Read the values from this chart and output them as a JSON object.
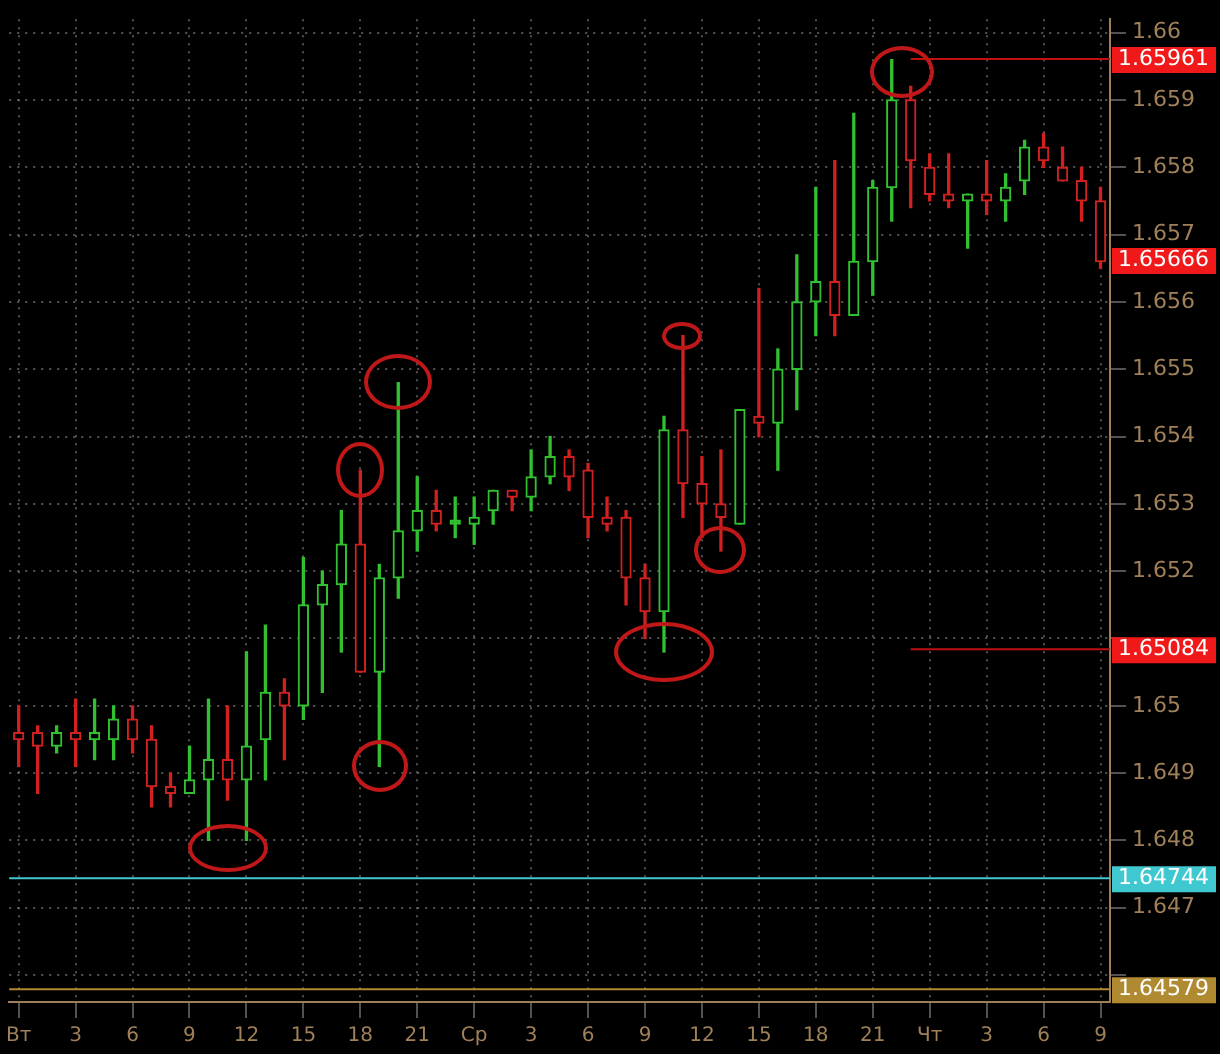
{
  "chart_data": {
    "type": "candlestick",
    "categories": [
      "Вт",
      null,
      null,
      "3",
      null,
      null,
      "6",
      null,
      null,
      "9",
      null,
      null,
      "12",
      null,
      null,
      "15",
      null,
      null,
      "18",
      null,
      null,
      "21",
      null,
      null,
      "Ср",
      null,
      null,
      "3",
      null,
      null,
      "6",
      null,
      null,
      "9",
      null,
      null,
      "12",
      null,
      null,
      "15",
      null,
      null,
      "18",
      null,
      null,
      "21",
      null,
      null,
      "Чт",
      null,
      null,
      "3",
      null,
      null,
      "6",
      null,
      null,
      "9"
    ],
    "ohlc": [
      [
        1.6496,
        1.65,
        1.6491,
        1.6495
      ],
      [
        1.6496,
        1.6497,
        1.6487,
        1.6494
      ],
      [
        1.6494,
        1.6497,
        1.6493,
        1.6496
      ],
      [
        1.6496,
        1.6501,
        1.6491,
        1.6495
      ],
      [
        1.6495,
        1.6501,
        1.6492,
        1.6496
      ],
      [
        1.6495,
        1.65,
        1.6492,
        1.6498
      ],
      [
        1.6498,
        1.65,
        1.6493,
        1.6495
      ],
      [
        1.6495,
        1.6497,
        1.6485,
        1.6488
      ],
      [
        1.6488,
        1.649,
        1.6485,
        1.6487
      ],
      [
        1.6487,
        1.6494,
        1.6487,
        1.6489
      ],
      [
        1.6489,
        1.6501,
        1.648,
        1.6492
      ],
      [
        1.6492,
        1.65,
        1.6486,
        1.6489
      ],
      [
        1.6489,
        1.6508,
        1.648,
        1.6494
      ],
      [
        1.6495,
        1.6512,
        1.6489,
        1.6502
      ],
      [
        1.6502,
        1.6504,
        1.6492,
        1.65
      ],
      [
        1.65,
        1.6522,
        1.6498,
        1.6515
      ],
      [
        1.6515,
        1.652,
        1.6502,
        1.6518
      ],
      [
        1.6518,
        1.6529,
        1.6508,
        1.6524
      ],
      [
        1.6524,
        1.6535,
        1.6505,
        1.6505
      ],
      [
        1.6505,
        1.6521,
        1.6491,
        1.6519
      ],
      [
        1.6519,
        1.6548,
        1.6516,
        1.6526
      ],
      [
        1.6526,
        1.6534,
        1.6523,
        1.6529
      ],
      [
        1.6529,
        1.6532,
        1.6526,
        1.6527
      ],
      [
        1.6527,
        1.6531,
        1.6525,
        1.6527
      ],
      [
        1.6527,
        1.6531,
        1.6524,
        1.6528
      ],
      [
        1.6529,
        1.6532,
        1.6527,
        1.6532
      ],
      [
        1.6532,
        1.6532,
        1.6529,
        1.6531
      ],
      [
        1.6531,
        1.6538,
        1.6529,
        1.6534
      ],
      [
        1.6534,
        1.654,
        1.6533,
        1.6537
      ],
      [
        1.6537,
        1.6538,
        1.6532,
        1.6534
      ],
      [
        1.6535,
        1.6536,
        1.6525,
        1.6528
      ],
      [
        1.6528,
        1.6531,
        1.6526,
        1.6527
      ],
      [
        1.6528,
        1.6529,
        1.6515,
        1.6519
      ],
      [
        1.6519,
        1.6521,
        1.651,
        1.6514
      ],
      [
        1.6514,
        1.6543,
        1.6508,
        1.6541
      ],
      [
        1.6541,
        1.6555,
        1.6528,
        1.6533
      ],
      [
        1.6533,
        1.6537,
        1.6525,
        1.653
      ],
      [
        1.653,
        1.6538,
        1.6523,
        1.6528
      ],
      [
        1.6527,
        1.6544,
        1.6527,
        1.6544
      ],
      [
        1.6543,
        1.6562,
        1.654,
        1.6542
      ],
      [
        1.6542,
        1.6553,
        1.6535,
        1.655
      ],
      [
        1.655,
        1.6567,
        1.6544,
        1.656
      ],
      [
        1.656,
        1.6577,
        1.6555,
        1.6563
      ],
      [
        1.6563,
        1.6581,
        1.6555,
        1.6558
      ],
      [
        1.6558,
        1.6588,
        1.6558,
        1.6566
      ],
      [
        1.6566,
        1.6578,
        1.6561,
        1.6577
      ],
      [
        1.6577,
        1.6596,
        1.6572,
        1.659
      ],
      [
        1.659,
        1.6592,
        1.6574,
        1.6581
      ],
      [
        1.658,
        1.6582,
        1.6575,
        1.6576
      ],
      [
        1.6576,
        1.6582,
        1.6574,
        1.6575
      ],
      [
        1.6575,
        1.6576,
        1.6568,
        1.6576
      ],
      [
        1.6576,
        1.6581,
        1.6573,
        1.6575
      ],
      [
        1.6575,
        1.6579,
        1.6572,
        1.6577
      ],
      [
        1.6578,
        1.6584,
        1.6576,
        1.6583
      ],
      [
        1.6583,
        1.6585,
        1.658,
        1.6581
      ],
      [
        1.658,
        1.6583,
        1.6578,
        1.6578
      ],
      [
        1.6578,
        1.658,
        1.6572,
        1.6575
      ],
      [
        1.6575,
        1.6577,
        1.6565,
        1.6566
      ]
    ],
    "colors": [
      "#d02020",
      "#d02020",
      "#30c030",
      "#d02020",
      "#30c030",
      "#30c030",
      "#d02020",
      "#d02020",
      "#d02020",
      "#30c030",
      "#30c030",
      "#d02020",
      "#30c030",
      "#30c030",
      "#d02020",
      "#30c030",
      "#30c030",
      "#30c030",
      "#d02020",
      "#30c030",
      "#30c030",
      "#30c030",
      "#d02020",
      "#30c030",
      "#30c030",
      "#30c030",
      "#d02020",
      "#30c030",
      "#30c030",
      "#d02020",
      "#d02020",
      "#d02020",
      "#d02020",
      "#d02020",
      "#30c030",
      "#d02020",
      "#d02020",
      "#d02020",
      "#30c030",
      "#d02020",
      "#30c030",
      "#30c030",
      "#30c030",
      "#d02020",
      "#30c030",
      "#30c030",
      "#30c030",
      "#d02020",
      "#d02020",
      "#d02020",
      "#30c030",
      "#d02020",
      "#30c030",
      "#30c030",
      "#d02020",
      "#d02020",
      "#d02020",
      "#d02020"
    ],
    "ylim": [
      1.6456,
      1.6602
    ],
    "yticks": [
      {
        "value": 1.646,
        "label": null
      },
      1.647,
      1.648,
      1.649,
      1.65,
      {
        "value": 1.651,
        "label": null
      },
      1.652,
      1.653,
      1.654,
      1.655,
      1.656,
      1.657,
      1.658,
      1.659,
      1.66
    ],
    "grid": true,
    "ref_lines": [
      {
        "axis": "y",
        "value": 1.65961,
        "label": "1.65961",
        "color": "#c01010"
      },
      {
        "axis": "y",
        "value": 1.65084,
        "label": "1.65084",
        "color": "#c01010"
      },
      {
        "axis": "y",
        "value": 1.64744,
        "label": "1.64744",
        "color": "#40c8d0"
      },
      {
        "axis": "y",
        "value": 1.64579,
        "label": "1.64579",
        "color": "#b08a30"
      }
    ],
    "annotations": [
      "1.65666"
    ]
  }
}
